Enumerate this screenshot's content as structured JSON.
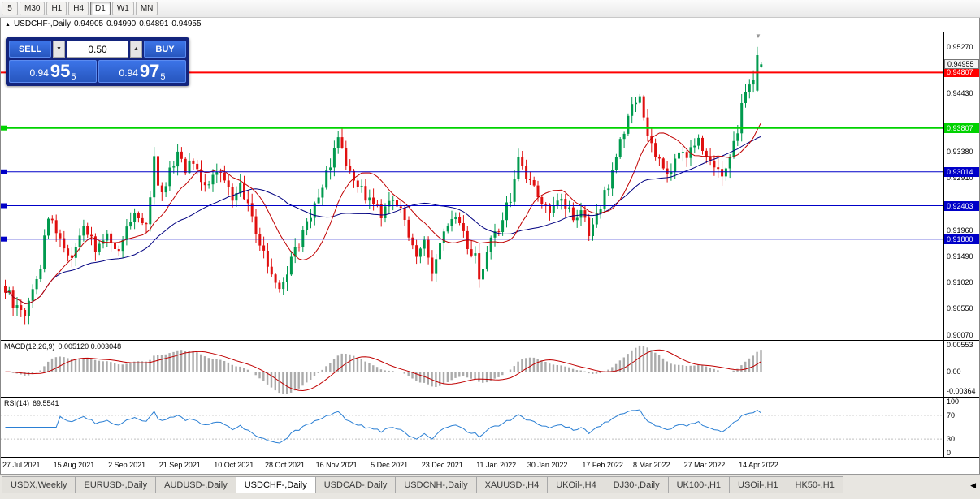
{
  "toolbar": {
    "timeframes": [
      {
        "label": "5",
        "active": false
      },
      {
        "label": "M30",
        "active": false
      },
      {
        "label": "H1",
        "active": false
      },
      {
        "label": "H4",
        "active": false
      },
      {
        "label": "D1",
        "active": true
      },
      {
        "label": "W1",
        "active": false
      },
      {
        "label": "MN",
        "active": false
      }
    ]
  },
  "icons": {
    "title_marker": "▲",
    "triangle_down": "▼",
    "triangle_up": "▲",
    "scroll_left": "◀",
    "shift_marker": "▼"
  },
  "chart": {
    "symbol_title": "USDCHF-,Daily",
    "open": "0.94905",
    "high": "0.94990",
    "low": "0.94891",
    "close": "0.94955"
  },
  "trade_panel": {
    "sell_label": "SELL",
    "buy_label": "BUY",
    "lot": "0.50",
    "sell_price_prefix": "0.94",
    "sell_price_big": "95",
    "sell_price_sup": "5",
    "buy_price_prefix": "0.94",
    "buy_price_big": "97",
    "buy_price_sup": "5"
  },
  "indicators": {
    "macd_title": "MACD(12,26,9)",
    "macd_values": "0.005120 0.003048",
    "rsi_title": "RSI(14)",
    "rsi_value": "69.5541"
  },
  "colors": {
    "up": "#009A4E",
    "down": "#E01010",
    "ma_fast": "#C00000",
    "ma_slow": "#000080",
    "macd_hist": "#ABABAB",
    "macd_signal": "#C00000",
    "rsi_line": "#2A7FD4",
    "rsi_level": "#C0C0C0",
    "axis_text": "#000000"
  },
  "chart_data": {
    "type": "candlestick",
    "symbol": "USDCHF",
    "timeframe": "Daily",
    "candles_count": 194,
    "price_range": [
      0.8998,
      0.9553
    ],
    "price_waypoints": [
      [
        0,
        0.909
      ],
      [
        2,
        0.9062
      ],
      [
        5,
        0.9046
      ],
      [
        9,
        0.9135
      ],
      [
        11,
        0.9225
      ],
      [
        14,
        0.9175
      ],
      [
        17,
        0.915
      ],
      [
        20,
        0.9205
      ],
      [
        23,
        0.9168
      ],
      [
        26,
        0.9195
      ],
      [
        29,
        0.9158
      ],
      [
        33,
        0.9228
      ],
      [
        36,
        0.92
      ],
      [
        38,
        0.9315
      ],
      [
        40,
        0.9258
      ],
      [
        44,
        0.934
      ],
      [
        46,
        0.9295
      ],
      [
        48,
        0.9325
      ],
      [
        50,
        0.9278
      ],
      [
        53,
        0.929
      ],
      [
        55,
        0.9305
      ],
      [
        58,
        0.9258
      ],
      [
        60,
        0.9278
      ],
      [
        63,
        0.9218
      ],
      [
        66,
        0.916
      ],
      [
        68,
        0.912
      ],
      [
        70,
        0.9095
      ],
      [
        73,
        0.9145
      ],
      [
        76,
        0.9185
      ],
      [
        79,
        0.9245
      ],
      [
        81,
        0.9282
      ],
      [
        84,
        0.933
      ],
      [
        85,
        0.9362
      ],
      [
        87,
        0.9308
      ],
      [
        90,
        0.9278
      ],
      [
        93,
        0.9252
      ],
      [
        96,
        0.9222
      ],
      [
        99,
        0.9258
      ],
      [
        102,
        0.9212
      ],
      [
        105,
        0.9152
      ],
      [
        107,
        0.9182
      ],
      [
        109,
        0.9122
      ],
      [
        112,
        0.9198
      ],
      [
        115,
        0.9232
      ],
      [
        118,
        0.9172
      ],
      [
        120,
        0.9152
      ],
      [
        121,
        0.9104
      ],
      [
        124,
        0.9178
      ],
      [
        127,
        0.9218
      ],
      [
        129,
        0.9258
      ],
      [
        131,
        0.9318
      ],
      [
        133,
        0.9298
      ],
      [
        136,
        0.9262
      ],
      [
        139,
        0.9232
      ],
      [
        142,
        0.9252
      ],
      [
        145,
        0.9212
      ],
      [
        147,
        0.9232
      ],
      [
        149,
        0.9182
      ],
      [
        152,
        0.9248
      ],
      [
        155,
        0.9298
      ],
      [
        158,
        0.9378
      ],
      [
        160,
        0.9418
      ],
      [
        162,
        0.9428
      ],
      [
        164,
        0.9378
      ],
      [
        166,
        0.9332
      ],
      [
        169,
        0.9295
      ],
      [
        172,
        0.9338
      ],
      [
        174,
        0.9328
      ],
      [
        177,
        0.9358
      ],
      [
        180,
        0.9318
      ],
      [
        183,
        0.9302
      ],
      [
        185,
        0.9332
      ],
      [
        187,
        0.938
      ],
      [
        189,
        0.9445
      ],
      [
        191,
        0.9468
      ],
      [
        192,
        0.9505
      ],
      [
        193,
        0.9496
      ]
    ],
    "final_override": [
      {
        "i": 192,
        "o": 0.9448,
        "h": 0.9527,
        "l": 0.9445,
        "c": 0.9512
      },
      {
        "i": 193,
        "o": 0.94905,
        "h": 0.9499,
        "l": 0.94891,
        "c": 0.94955
      }
    ],
    "ma_fast_period": 13,
    "ma_slow_period": 34,
    "hlines": [
      {
        "price": 0.94807,
        "label": "0.94807",
        "color": "#FF0000",
        "width": 2,
        "left_marker": false
      },
      {
        "price": 0.93807,
        "label": "0.93807",
        "color": "#00D200",
        "width": 2,
        "left_marker": true
      },
      {
        "price": 0.93014,
        "label": "0.93014",
        "color": "#0000C8",
        "width": 1,
        "left_marker": true
      },
      {
        "price": 0.92403,
        "label": "0.92403",
        "color": "#0000C8",
        "width": 1,
        "left_marker": true
      },
      {
        "price": 0.918,
        "label": "0.91800",
        "color": "#0000C8",
        "width": 1,
        "left_marker": true
      }
    ],
    "bid": {
      "price": 0.94955,
      "label": "0.94955"
    },
    "axis_ticks": [
      {
        "price": 0.9527,
        "label": "0.95270"
      },
      {
        "price": 0.9443,
        "label": "0.94430"
      },
      {
        "price": 0.9338,
        "label": "0.93380"
      },
      {
        "price": 0.9291,
        "label": "0.92910"
      },
      {
        "price": 0.9196,
        "label": "0.91960"
      },
      {
        "price": 0.9149,
        "label": "0.91490"
      },
      {
        "price": 0.9102,
        "label": "0.91020"
      },
      {
        "price": 0.9055,
        "label": "0.90550"
      },
      {
        "price": 0.9007,
        "label": "0.90070"
      }
    ],
    "macd": {
      "fast": 12,
      "slow": 26,
      "signal": 9,
      "current_macd": 0.00512,
      "current_signal": 0.003048,
      "axis_labels": [
        {
          "value": 0.00553,
          "label": "0.00553"
        },
        {
          "value": 0,
          "label": "0.00"
        },
        {
          "value": -0.00364,
          "label": "-0.00364"
        }
      ]
    },
    "rsi": {
      "period": 14,
      "current": 69.5541,
      "levels": [
        {
          "value": 100,
          "label": "100"
        },
        {
          "value": 70,
          "label": "70"
        },
        {
          "value": 30,
          "label": "30"
        },
        {
          "value": 0,
          "label": "0"
        }
      ],
      "dashed_levels": [
        70,
        30
      ]
    },
    "dates": [
      [
        0,
        "27 Jul 2021"
      ],
      [
        13,
        "15 Aug 2021"
      ],
      [
        27,
        "2 Sep 2021"
      ],
      [
        40,
        "21 Sep 2021"
      ],
      [
        54,
        "10 Oct 2021"
      ],
      [
        67,
        "28 Oct 2021"
      ],
      [
        80,
        "16 Nov 2021"
      ],
      [
        94,
        "5 Dec 2021"
      ],
      [
        107,
        "23 Dec 2021"
      ],
      [
        121,
        "11 Jan 2022"
      ],
      [
        134,
        "30 Jan 2022"
      ],
      [
        148,
        "17 Feb 2022"
      ],
      [
        161,
        "8 Mar 2022"
      ],
      [
        174,
        "27 Mar 2022"
      ],
      [
        188,
        "14 Apr 2022"
      ]
    ]
  },
  "tab_bar": {
    "tabs": [
      {
        "label": "USDX,Weekly",
        "active": false
      },
      {
        "label": "EURUSD-,Daily",
        "active": false
      },
      {
        "label": "AUDUSD-,Daily",
        "active": false
      },
      {
        "label": "USDCHF-,Daily",
        "active": true
      },
      {
        "label": "USDCAD-,Daily",
        "active": false
      },
      {
        "label": "USDCNH-,Daily",
        "active": false
      },
      {
        "label": "XAUUSD-,H4",
        "active": false
      },
      {
        "label": "UKOil-,H4",
        "active": false
      },
      {
        "label": "DJ30-,Daily",
        "active": false
      },
      {
        "label": "UK100-,H1",
        "active": false
      },
      {
        "label": "USOil-,H1",
        "active": false
      },
      {
        "label": "HK50-,H1",
        "active": false
      }
    ]
  }
}
